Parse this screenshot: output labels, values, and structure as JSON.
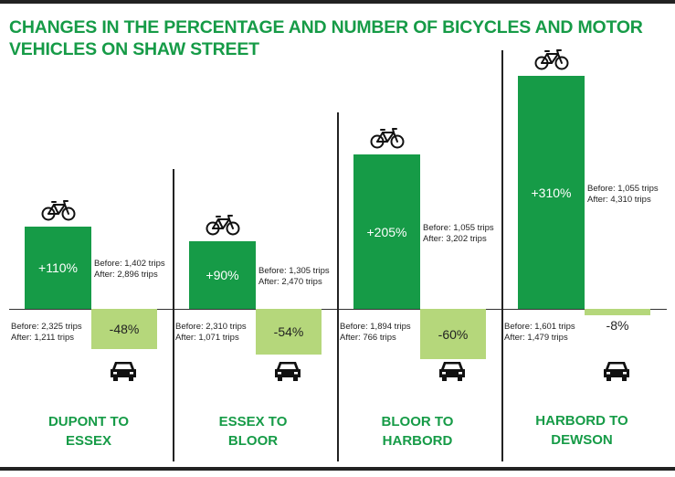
{
  "title": "CHANGES IN THE PERCENTAGE AND NUMBER OF BICYCLES AND MOTOR VEHICLES ON SHAW STREET",
  "colors": {
    "bike": "#169b47",
    "car": "#b5d77b",
    "title": "#169b47"
  },
  "icons": {
    "bike": "bicycle-icon",
    "car": "car-icon"
  },
  "chart_data": {
    "type": "bar",
    "title": "CHANGES IN THE PERCENTAGE AND NUMBER OF BICYCLES AND MOTOR VEHICLES ON SHAW STREET",
    "categories": [
      "DUPONT TO ESSEX",
      "ESSEX TO BLOOR",
      "BLOOR TO HARBORD",
      "HARBORD TO DEWSON"
    ],
    "series": [
      {
        "key": "bicycles",
        "values": [
          110,
          90,
          205,
          310
        ]
      },
      {
        "key": "motor_vehicles",
        "values": [
          -48,
          -54,
          -60,
          -8
        ]
      }
    ],
    "ylim": [
      -60,
      310
    ],
    "grid": false
  },
  "segments": [
    {
      "label_lines": [
        "DUPONT TO",
        "ESSEX"
      ],
      "bike": {
        "pct": "+110%",
        "before": "Before: 1,402 trips",
        "after": "After: 2,896 trips"
      },
      "car": {
        "pct": "-48%",
        "before": "Before: 2,325 trips",
        "after": "After: 1,211 trips"
      }
    },
    {
      "label_lines": [
        "ESSEX TO",
        "BLOOR"
      ],
      "bike": {
        "pct": "+90%",
        "before": "Before: 1,305 trips",
        "after": "After: 2,470 trips"
      },
      "car": {
        "pct": "-54%",
        "before": "Before: 2,310 trips",
        "after": "After: 1,071 trips"
      }
    },
    {
      "label_lines": [
        "BLOOR TO",
        "HARBORD"
      ],
      "bike": {
        "pct": "+205%",
        "before": "Before: 1,055 trips",
        "after": "After: 3,202 trips"
      },
      "car": {
        "pct": "-60%",
        "before": "Before: 1,894 trips",
        "after": "After: 766 trips"
      }
    },
    {
      "label_lines": [
        "HARBORD TO",
        "DEWSON"
      ],
      "bike": {
        "pct": "+310%",
        "before": "Before: 1,055 trips",
        "after": "After: 4,310 trips"
      },
      "car": {
        "pct": "-8%",
        "before": "Before: 1,601 trips",
        "after": "After: 1,479 trips"
      }
    }
  ]
}
